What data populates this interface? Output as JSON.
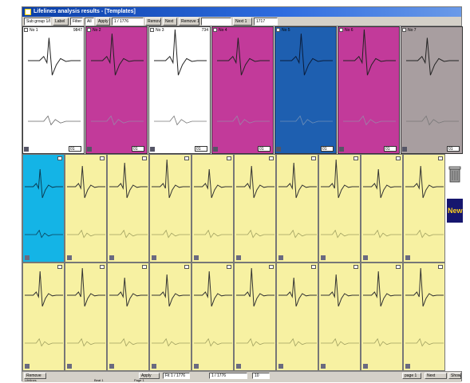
{
  "window": {
    "title": "Lifelines analysis results - [Templates]"
  },
  "toolbar": [
    {
      "label": "Sub group 1/8",
      "kind": "field"
    },
    {
      "label": "Label",
      "kind": "btn"
    },
    {
      "label": "Filter",
      "kind": "field"
    },
    {
      "label": "All",
      "kind": "field"
    },
    {
      "label": "Apply",
      "kind": "btn"
    },
    {
      "label": "1 / 1776",
      "kind": "field"
    },
    {
      "label": "Remove",
      "kind": "btn"
    },
    {
      "label": "Next",
      "kind": "btn"
    },
    {
      "label": "Remove 1",
      "kind": "btn"
    },
    {
      "label": "",
      "kind": "field"
    },
    {
      "label": "Next 1",
      "kind": "btn"
    },
    {
      "label": "1717",
      "kind": "field"
    }
  ],
  "templates": [
    {
      "num": "No 1",
      "count": "9847",
      "bg": "#ffffff",
      "trace": "#222222",
      "trace2": "#666666",
      "spin": "01"
    },
    {
      "num": "No 2",
      "count": "",
      "bg": "#c23a9a",
      "trace": "#222222",
      "trace2": "#9a86a8",
      "spin": "01"
    },
    {
      "num": "No 3",
      "count": "734",
      "bg": "#ffffff",
      "trace": "#222222",
      "trace2": "#777777",
      "spin": "01"
    },
    {
      "num": "No 4",
      "count": "",
      "bg": "#c23a9a",
      "trace": "#222222",
      "trace2": "#9a86a8",
      "spin": "01"
    },
    {
      "num": "No 5",
      "count": "",
      "bg": "#1e5fb0",
      "trace": "#0a1c3a",
      "trace2": "#7090b8",
      "spin": "01"
    },
    {
      "num": "No 6",
      "count": "",
      "bg": "#c23a9a",
      "trace": "#222222",
      "trace2": "#9a86a8",
      "spin": "01"
    },
    {
      "num": "No 7",
      "count": "",
      "bg": "#a89ea0",
      "trace": "#222222",
      "trace2": "#777777",
      "spin": "01"
    }
  ],
  "beats_grid": {
    "rows": 2,
    "cols": 10,
    "default_bg": "#f7f1a2",
    "selected_bg": "#14b4e6",
    "trace": "#333333",
    "trace2": "#a0a060"
  },
  "side": {
    "new_label": "New"
  },
  "bottombar": [
    {
      "label": "Remove",
      "kind": "btn"
    },
    {
      "label": "Apply",
      "kind": "btn"
    },
    {
      "label": "Fit 1 / 1776",
      "kind": "field"
    },
    {
      "label": "1 / 1776",
      "kind": "field"
    },
    {
      "label": "10",
      "kind": "field"
    },
    {
      "label": "page 1",
      "kind": "btn"
    },
    {
      "label": "Next",
      "kind": "btn"
    },
    {
      "label": "Show beats",
      "kind": "btn"
    }
  ],
  "statusbar": {
    "left": "Lifelines",
    "mid": "Beat 1",
    "right": "Page 1"
  }
}
